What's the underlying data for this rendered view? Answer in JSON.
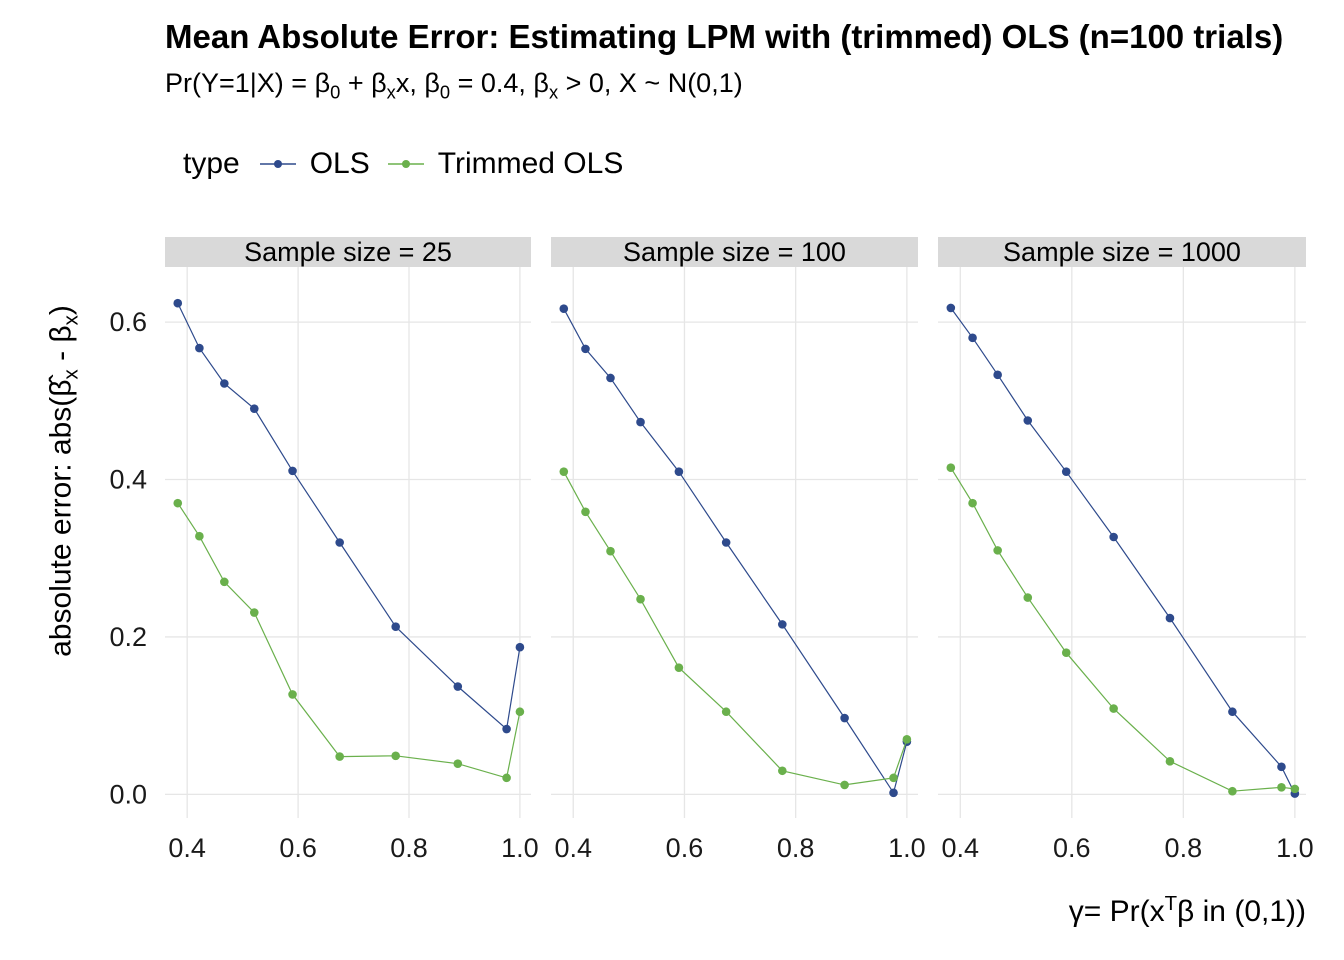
{
  "title": "Mean Absolute Error: Estimating LPM with (trimmed) OLS (n=100 trials)",
  "subtitle_html": "Pr(Y=1|X) = β<sub>0</sub> + β<sub>x</sub>x, β<sub>0</sub> = 0.4, β<sub>x</sub> &gt; 0, X ~ N(0,1)",
  "legend": {
    "title": "type",
    "items": [
      {
        "label": "OLS",
        "color": "#2e4a8c"
      },
      {
        "label": "Trimmed OLS",
        "color": "#6ab04c"
      }
    ]
  },
  "colors": {
    "ols": "#2e4a8c",
    "trimmed": "#6ab04c",
    "grid": "#e6e6e6",
    "strip": "#d9d9d9"
  },
  "chart_data": {
    "type": "line",
    "title": "Mean Absolute Error: Estimating LPM with (trimmed) OLS (n=100 trials)",
    "xlabel_html": "γ= Pr(x<sup>T</sup>β in (0,1))",
    "ylabel_html": "absolute error: abs(β̂<sub>x</sub> - β<sub>x</sub>)",
    "xlim": [
      0.36,
      1.02
    ],
    "ylim": [
      -0.03,
      0.67
    ],
    "x_ticks": [
      0.4,
      0.6,
      0.8,
      1.0
    ],
    "x_tick_labels": [
      "0.4",
      "0.6",
      "0.8",
      "1.0"
    ],
    "y_ticks": [
      0.0,
      0.2,
      0.4,
      0.6
    ],
    "y_tick_labels": [
      "0.0",
      "0.2",
      "0.4",
      "0.6"
    ],
    "grid": true,
    "legend_position": "top",
    "panels": [
      {
        "strip": "Sample size = 25",
        "series": [
          {
            "name": "OLS",
            "x": [
              0.383,
              0.422,
              0.467,
              0.521,
              0.59,
              0.675,
              0.776,
              0.888,
              0.976,
              1.0
            ],
            "y": [
              0.624,
              0.567,
              0.522,
              0.49,
              0.411,
              0.32,
              0.213,
              0.137,
              0.083,
              0.187
            ]
          },
          {
            "name": "Trimmed OLS",
            "x": [
              0.383,
              0.422,
              0.467,
              0.521,
              0.59,
              0.675,
              0.776,
              0.888,
              0.976,
              1.0
            ],
            "y": [
              0.37,
              0.328,
              0.27,
              0.231,
              0.127,
              0.048,
              0.049,
              0.039,
              0.021,
              0.105
            ]
          }
        ]
      },
      {
        "strip": "Sample size = 100",
        "series": [
          {
            "name": "OLS",
            "x": [
              0.383,
              0.422,
              0.467,
              0.521,
              0.59,
              0.675,
              0.776,
              0.888,
              0.976,
              1.0
            ],
            "y": [
              0.617,
              0.566,
              0.529,
              0.473,
              0.41,
              0.32,
              0.216,
              0.097,
              0.002,
              0.067
            ]
          },
          {
            "name": "Trimmed OLS",
            "x": [
              0.383,
              0.422,
              0.467,
              0.521,
              0.59,
              0.675,
              0.776,
              0.888,
              0.976,
              1.0
            ],
            "y": [
              0.41,
              0.359,
              0.309,
              0.248,
              0.161,
              0.105,
              0.03,
              0.012,
              0.021,
              0.07
            ]
          }
        ]
      },
      {
        "strip": "Sample size = 1000",
        "series": [
          {
            "name": "OLS",
            "x": [
              0.383,
              0.422,
              0.467,
              0.521,
              0.59,
              0.675,
              0.776,
              0.888,
              0.976,
              1.0
            ],
            "y": [
              0.618,
              0.58,
              0.533,
              0.475,
              0.41,
              0.327,
              0.224,
              0.105,
              0.035,
              0.001
            ]
          },
          {
            "name": "Trimmed OLS",
            "x": [
              0.383,
              0.422,
              0.467,
              0.521,
              0.59,
              0.675,
              0.776,
              0.888,
              0.976,
              1.0
            ],
            "y": [
              0.415,
              0.37,
              0.31,
              0.25,
              0.18,
              0.109,
              0.042,
              0.004,
              0.009,
              0.007
            ]
          }
        ]
      }
    ]
  }
}
